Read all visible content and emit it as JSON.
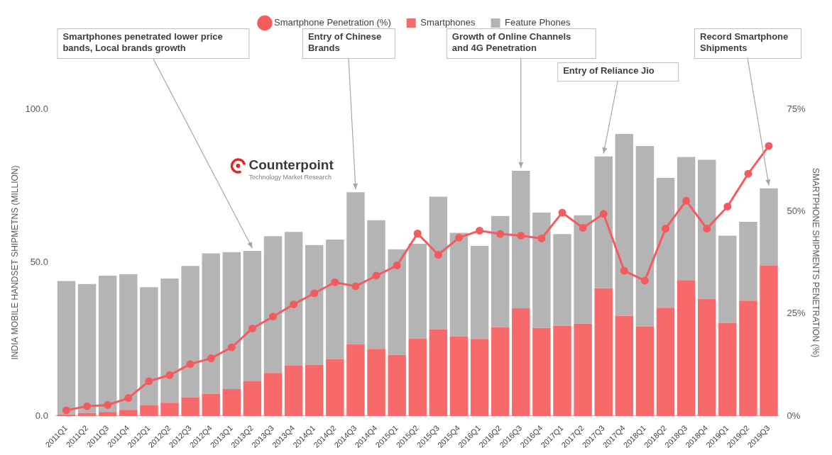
{
  "chart_data": {
    "type": "bar",
    "stacked": true,
    "categories": [
      "2011Q1",
      "2011Q2",
      "2011Q3",
      "2011Q4",
      "2012Q1",
      "2012Q2",
      "2012Q3",
      "2012Q4",
      "2013Q1",
      "2013Q2",
      "2013Q3",
      "2013Q4",
      "2014Q1",
      "2014Q2",
      "2014Q3",
      "2014Q4",
      "2015Q1",
      "2015Q2",
      "2015Q3",
      "2015Q4",
      "2016Q1",
      "2016Q2",
      "2016Q3",
      "2016Q4",
      "2017Q1",
      "2017Q2",
      "2017Q3",
      "2017Q4",
      "2018Q1",
      "2018Q2",
      "2018Q3",
      "2018Q4",
      "2019Q1",
      "2019Q2",
      "2019Q3"
    ],
    "series": [
      {
        "name": "Smartphones",
        "color": "#f8696b",
        "values": [
          0.5,
          1,
          1.3,
          2,
          3.6,
          4.3,
          6.1,
          7.2,
          8.8,
          11.3,
          14,
          16.5,
          16.7,
          18.6,
          23.3,
          21.9,
          19.9,
          25.3,
          28.3,
          26,
          25.1,
          29,
          35.1,
          28.7,
          29.4,
          30.1,
          41.6,
          32.6,
          29.2,
          35.3,
          44.3,
          38.2,
          30.3,
          37.6,
          49.1
        ]
      },
      {
        "name": "Feature Phones",
        "color": "#b4b4b4",
        "values": [
          43.5,
          42,
          44.4,
          44.2,
          38.4,
          40.5,
          42.8,
          45.8,
          44.6,
          42.5,
          44.6,
          43.5,
          39,
          38.9,
          49.6,
          41.9,
          34.4,
          30.8,
          43.2,
          33.7,
          30.3,
          36.2,
          44.8,
          37.6,
          29.9,
          35.3,
          43,
          59.3,
          58.8,
          42.3,
          40.1,
          45.3,
          28.5,
          25.7,
          25.1
        ]
      },
      {
        "name": "Smartphone Penetration (%)",
        "type": "line",
        "axis": "y2",
        "color": "#f25c5f",
        "marker": "circle",
        "values": [
          1.4,
          2.4,
          2.7,
          4.4,
          8.5,
          10,
          12.7,
          14.1,
          16.8,
          21.4,
          24.3,
          27.3,
          30,
          32.7,
          31.7,
          34.3,
          36.8,
          44.6,
          39.4,
          43.6,
          45.3,
          44.5,
          44.1,
          43.4,
          49.7,
          46,
          49.4,
          35.5,
          33.1,
          45.8,
          52.6,
          45.8,
          51.2,
          59.2,
          66
        ]
      }
    ],
    "y_label": "INDIA MOBILE HANDSET SHIPMETNS (MILLION)",
    "y2_label": "SMARTPHONE SHIPMENTS PENETRATION (%)",
    "ylim": [
      0,
      100
    ],
    "yticks": [
      {
        "value": 0,
        "label": "0.0"
      },
      {
        "value": 50,
        "label": "50.0"
      },
      {
        "value": 100,
        "label": "100.0"
      }
    ],
    "y2lim": [
      0,
      75
    ],
    "y2ticks": [
      {
        "value": 0,
        "label": "0%"
      },
      {
        "value": 25,
        "label": "25%"
      },
      {
        "value": 50,
        "label": "50%"
      },
      {
        "value": 75,
        "label": "75%"
      }
    ],
    "grid": false,
    "legend": "top",
    "annotations": [
      {
        "text": "Smartphones penetrated lower price bands, Local brands growth",
        "category": "2013Q2"
      },
      {
        "text": "Entry of Chinese Brands",
        "category": "2014Q3"
      },
      {
        "text": "Growth of Online Channels and 4G Penetration",
        "category": "2016Q3"
      },
      {
        "text": "Entry of Reliance Jio",
        "category": "2017Q3"
      },
      {
        "text": "Record Smartphone Shipments",
        "category": "2019Q3"
      }
    ],
    "logo": {
      "name": "Counterpoint",
      "tagline": "Technology Market Research"
    }
  }
}
